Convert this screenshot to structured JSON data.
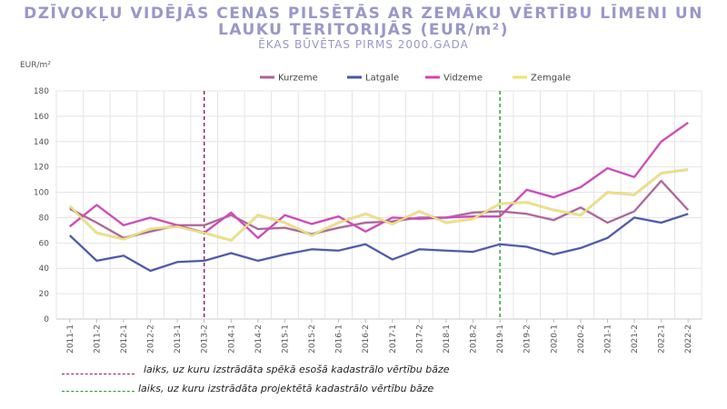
{
  "chart_data": {
    "type": "line",
    "title": "DZĪVOKĻU VIDĒJĀS CENAS PILSĒTĀS AR ZEMĀKU VĒRTĪBU LĪMENI UN LAUKU TERITORIJĀS (EUR/m²)",
    "subtitle": "ĒKAS BŪVĒTAS PIRMS 2000.GADA",
    "ylabel": "EUR/m²",
    "xlabel": "",
    "ylim": [
      0,
      180
    ],
    "yticks": [
      0,
      20,
      40,
      60,
      80,
      100,
      120,
      140,
      160,
      180
    ],
    "grid": true,
    "legend_position": "top-center",
    "categories": [
      "2011-1",
      "2011-2",
      "2012-1",
      "2012-2",
      "2013-1",
      "2013-2",
      "2014-1",
      "2014-2",
      "2015-1",
      "2015-2",
      "2016-1",
      "2016-2",
      "2017-1",
      "2017-2",
      "2018-1",
      "2018-2",
      "2019-1",
      "2019-2",
      "2020-1",
      "2020-2",
      "2021-1",
      "2021-2",
      "2022-1",
      "2022-2"
    ],
    "series": [
      {
        "name": "Kurzeme",
        "color": "#b0609a",
        "values": [
          87,
          76,
          64,
          69,
          74,
          74,
          82,
          71,
          72,
          67,
          72,
          76,
          77,
          80,
          80,
          84,
          85,
          83,
          78,
          88,
          76,
          85,
          109,
          86
        ]
      },
      {
        "name": "Latgale",
        "color": "#4a55b0",
        "values": [
          66,
          46,
          50,
          38,
          45,
          46,
          52,
          46,
          51,
          55,
          54,
          59,
          47,
          55,
          54,
          53,
          59,
          57,
          51,
          56,
          64,
          80,
          76,
          83
        ]
      },
      {
        "name": "Vidzeme",
        "color": "#d63fbf",
        "values": [
          73,
          90,
          74,
          80,
          74,
          68,
          84,
          64,
          82,
          75,
          81,
          69,
          80,
          79,
          80,
          81,
          81,
          102,
          96,
          104,
          119,
          112,
          140,
          155
        ]
      },
      {
        "name": "Zemgale",
        "color": "#f2e36a",
        "values": [
          89,
          68,
          63,
          71,
          73,
          68,
          62,
          82,
          76,
          66,
          76,
          83,
          75,
          85,
          76,
          79,
          91,
          92,
          86,
          82,
          100,
          98,
          115,
          118
        ]
      }
    ],
    "markers": [
      {
        "category": "2013-2",
        "color": "#8b1a6b",
        "label": "laiks, uz kuru izstrādāta spēkā esošā kadastrālo vērtību bāze"
      },
      {
        "category": "2019-1",
        "color": "#22a022",
        "label": "laiks, uz kuru izstrādāta projektētā kadastrālo vērtību bāze"
      }
    ]
  }
}
